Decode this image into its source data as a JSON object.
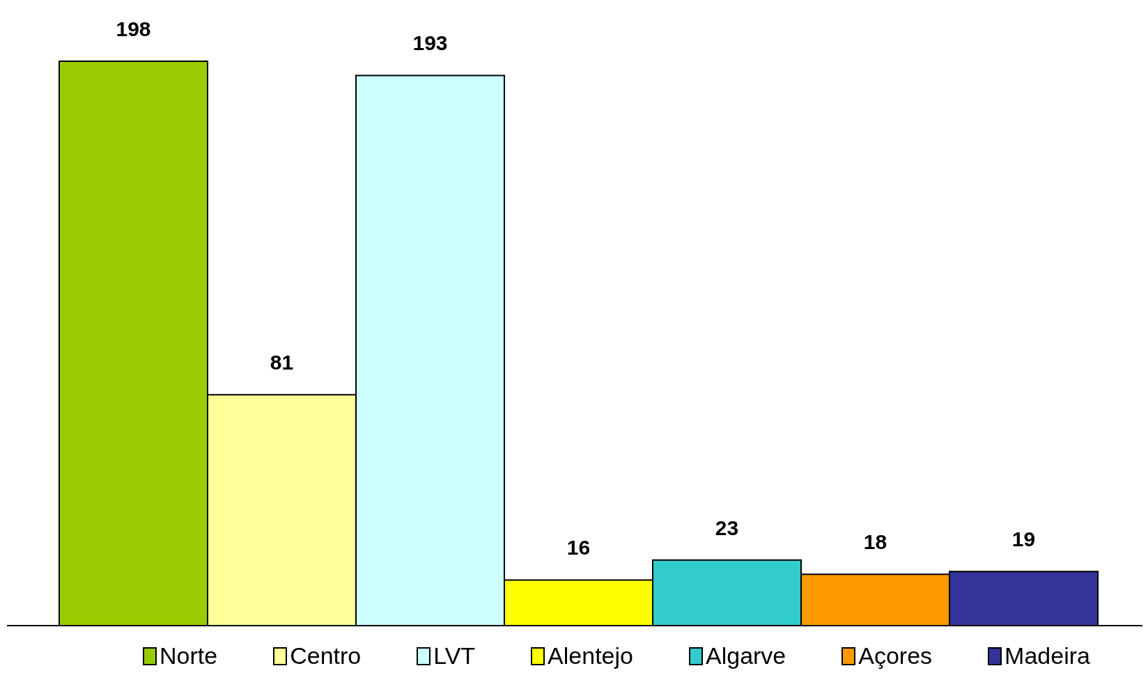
{
  "chart_data": {
    "type": "bar",
    "categories": [
      null
    ],
    "series": [
      {
        "name": "Norte",
        "color": "#99cc00",
        "values": [
          198
        ]
      },
      {
        "name": "Centro",
        "color": "#ffff99",
        "values": [
          81
        ]
      },
      {
        "name": "LVT",
        "color": "#ccffff",
        "values": [
          193
        ]
      },
      {
        "name": "Alentejo",
        "color": "#ffff00",
        "values": [
          16
        ]
      },
      {
        "name": "Algarve",
        "color": "#33cccc",
        "values": [
          23
        ]
      },
      {
        "name": "Açores",
        "color": "#ff9900",
        "values": [
          18
        ]
      },
      {
        "name": "Madeira",
        "color": "#333399",
        "values": [
          19
        ]
      }
    ],
    "data_labels": true,
    "legend": "bottom",
    "grid": false
  }
}
